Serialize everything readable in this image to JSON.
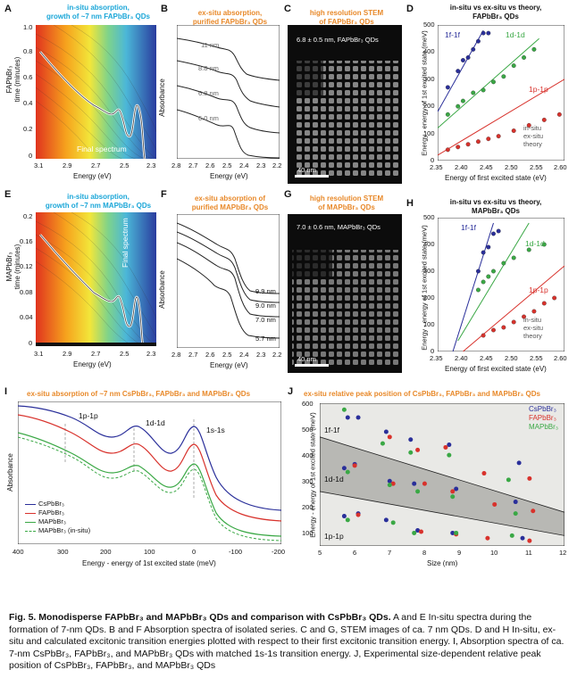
{
  "panels": {
    "A": {
      "label": "A",
      "title_line1": "in-situ absorption,",
      "title_line2": "growth of ~7 nm FAPbBr₃ QDs",
      "ylabel_line1": "FAPbBr₃",
      "ylabel_line2": "time (minutes)",
      "xlabel": "Energy (eV)",
      "xticks": [
        "3.1",
        "2.9",
        "2.7",
        "2.5",
        "2.3"
      ],
      "yticks": [
        "1.0",
        "0.8",
        "0.6",
        "0.4",
        "0.2",
        "0"
      ],
      "annotation": "Final spectrum"
    },
    "B": {
      "label": "B",
      "title_line1": "ex-situ absorption,",
      "title_line2": "purified FAPbBr₃ QDs",
      "ylabel": "Absorbance",
      "xlabel": "Energy (eV)",
      "xticks": [
        "2.8",
        "2.7",
        "2.6",
        "2.5",
        "2.4",
        "2.3",
        "2.2"
      ],
      "sizes": [
        "11 nm",
        "8.8 nm",
        "6.8 nm",
        "6.0 nm"
      ]
    },
    "C": {
      "label": "C",
      "title_line1": "high resolution STEM",
      "title_line2": "of FAPbBr₃ QDs",
      "size_note": "6.8 ± 0.5 nm, FAPbBr₃ QDs",
      "scalebar": "40 nm"
    },
    "D": {
      "label": "D",
      "title_line1": "in-situ vs ex-situ vs theory,",
      "title_line2": "FAPbBr₃ QDs",
      "ylabel": "Energy - energy of 1st excited state (meV)",
      "xlabel": "Energy of first excited state (eV)",
      "xticks": [
        "2.35",
        "2.40",
        "2.45",
        "2.50",
        "2.55",
        "2.60"
      ],
      "yticks": [
        "0",
        "100",
        "200",
        "300",
        "400",
        "500"
      ],
      "labels": [
        "1f-1f",
        "1d-1d",
        "1p-1p"
      ],
      "legend": [
        "in-situ",
        "ex-situ",
        "theory"
      ]
    },
    "E": {
      "label": "E",
      "title_line1": "in-situ absorption,",
      "title_line2": "growth of ~7 nm MAPbBr₃ QDs",
      "ylabel_line1": "MAPbBr₃",
      "ylabel_line2": "time (minutes)",
      "xlabel": "Energy (eV)",
      "xticks": [
        "3.1",
        "2.9",
        "2.7",
        "2.5",
        "2.3"
      ],
      "yticks": [
        "0.2",
        "0.16",
        "0.12",
        "0.08",
        "0.04",
        "0"
      ],
      "annotation": "Final spectrum"
    },
    "F": {
      "label": "F",
      "title_line1": "ex-situ absorption of",
      "title_line2": "purified MAPbBr₃ QDs",
      "ylabel": "Absorbance",
      "xlabel": "Energy (eV)",
      "xticks": [
        "2.8",
        "2.7",
        "2.6",
        "2.5",
        "2.4",
        "2.3",
        "2.2"
      ],
      "sizes": [
        "9.9 nm",
        "9.0 nm",
        "7.0 nm",
        "5.7 nm"
      ]
    },
    "G": {
      "label": "G",
      "title_line1": "high resolution STEM",
      "title_line2": "of MAPbBr₃ QDs",
      "size_note": "7.0 ± 0.6 nm, MAPbBr₃ QDs",
      "scalebar": "40 nm"
    },
    "H": {
      "label": "H",
      "title_line1": "in-situ vs ex-situ vs theory,",
      "title_line2": "MAPbBr₃ QDs",
      "ylabel": "Energy - energy of 1st excited state (meV)",
      "xlabel": "Energy of first excited state (eV)",
      "xticks": [
        "2.35",
        "2.40",
        "2.45",
        "2.50",
        "2.55",
        "2.60"
      ],
      "yticks": [
        "0",
        "100",
        "200",
        "300",
        "400",
        "500"
      ],
      "labels": [
        "1f-1f",
        "1d-1d",
        "1p-1p"
      ],
      "legend": [
        "in-situ",
        "ex-situ",
        "theory"
      ]
    },
    "I": {
      "label": "I",
      "title": "ex-situ absorption of ~7 nm CsPbBr₃, FAPbBr₃ and MAPbBr₃ QDs",
      "ylabel": "Absorbance",
      "xlabel": "Energy - energy of 1st excited state (meV)",
      "xticks": [
        "400",
        "300",
        "200",
        "100",
        "0",
        "-100",
        "-200"
      ],
      "peaks": [
        "1p-1p",
        "1d-1d",
        "1s-1s"
      ],
      "legend": [
        "CsPbBr₃",
        "FAPbBr₃",
        "MAPbBr₃",
        "MAPbBr₃ (in-situ)"
      ]
    },
    "J": {
      "label": "J",
      "title": "ex-situ relative peak position of CsPbBr₃, FAPbBr₃ and MAPbBr₃ QDs",
      "ylabel": "Energy - energy of 1st excited state (meV)",
      "xlabel": "Size (nm)",
      "xticks": [
        "5",
        "6",
        "7",
        "8",
        "9",
        "10",
        "11",
        "12"
      ],
      "yticks": [
        "100",
        "200",
        "300",
        "400",
        "500",
        "600"
      ],
      "bands": [
        "1f-1f",
        "1d-1d",
        "1p-1p"
      ],
      "legend": [
        "CsPbBr₃",
        "FAPbBr₃",
        "MAPbBr₃"
      ]
    }
  },
  "colors": {
    "cyan": "#1aa6d8",
    "orange": "#e8892a",
    "blue": "#2a2f9a",
    "red": "#d8322c",
    "green": "#3aa845"
  },
  "chart_data": [
    {
      "panel": "D",
      "type": "scatter",
      "xlim": [
        2.35,
        2.6
      ],
      "ylim": [
        0,
        500
      ],
      "series": [
        {
          "name": "1f-1f ex-situ",
          "color": "blue",
          "x": [
            2.37,
            2.39,
            2.4,
            2.41,
            2.42,
            2.43,
            2.44,
            2.45
          ],
          "y": [
            270,
            330,
            370,
            380,
            410,
            440,
            470,
            470
          ]
        },
        {
          "name": "1d-1d ex-situ",
          "color": "green",
          "x": [
            2.37,
            2.39,
            2.4,
            2.42,
            2.44,
            2.46,
            2.48,
            2.5,
            2.52,
            2.54
          ],
          "y": [
            170,
            200,
            220,
            250,
            260,
            290,
            310,
            350,
            380,
            410
          ]
        },
        {
          "name": "1p-1p ex-situ",
          "color": "red",
          "x": [
            2.37,
            2.39,
            2.41,
            2.43,
            2.45,
            2.47,
            2.5,
            2.53,
            2.56,
            2.59
          ],
          "y": [
            40,
            50,
            60,
            70,
            80,
            90,
            110,
            130,
            150,
            170
          ]
        }
      ],
      "theory": [
        {
          "color": "blue",
          "x": [
            2.35,
            2.44
          ],
          "y": [
            180,
            480
          ]
        },
        {
          "color": "green",
          "x": [
            2.35,
            2.55
          ],
          "y": [
            120,
            450
          ]
        },
        {
          "color": "red",
          "x": [
            2.35,
            2.6
          ],
          "y": [
            20,
            300
          ]
        }
      ]
    },
    {
      "panel": "H",
      "type": "scatter",
      "xlim": [
        2.35,
        2.6
      ],
      "ylim": [
        0,
        500
      ],
      "series": [
        {
          "name": "1f-1f ex-situ",
          "color": "blue",
          "x": [
            2.43,
            2.44,
            2.45,
            2.46,
            2.47
          ],
          "y": [
            300,
            370,
            390,
            440,
            450
          ]
        },
        {
          "name": "1d-1d ex-situ",
          "color": "green",
          "x": [
            2.43,
            2.44,
            2.45,
            2.46,
            2.48,
            2.5,
            2.53,
            2.56
          ],
          "y": [
            230,
            260,
            280,
            300,
            330,
            350,
            380,
            400
          ]
        },
        {
          "name": "1p-1p ex-situ",
          "color": "red",
          "x": [
            2.44,
            2.46,
            2.48,
            2.5,
            2.52,
            2.54,
            2.56,
            2.58
          ],
          "y": [
            60,
            80,
            90,
            110,
            130,
            150,
            180,
            200
          ]
        }
      ],
      "theory": [
        {
          "color": "blue",
          "x": [
            2.38,
            2.46
          ],
          "y": [
            0,
            480
          ]
        },
        {
          "color": "green",
          "x": [
            2.39,
            2.53
          ],
          "y": [
            40,
            480
          ]
        },
        {
          "color": "red",
          "x": [
            2.4,
            2.6
          ],
          "y": [
            0,
            320
          ]
        }
      ]
    },
    {
      "panel": "J",
      "type": "scatter",
      "xlim": [
        5,
        12
      ],
      "ylim": [
        50,
        600
      ],
      "series": [
        {
          "name": "CsPbBr₃",
          "color": "blue",
          "x": [
            5.8,
            6.1,
            5.7,
            6.0,
            5.7,
            6.1,
            6.9,
            7.0,
            6.9,
            7.6,
            7.7,
            7.8,
            8.7,
            8.9,
            8.8,
            10.7,
            10.6,
            10.8
          ],
          "y": [
            545,
            545,
            350,
            365,
            165,
            175,
            490,
            300,
            150,
            460,
            290,
            110,
            440,
            270,
            100,
            370,
            220,
            80
          ]
        },
        {
          "name": "FAPbBr₃",
          "color": "red",
          "x": [
            6.0,
            6.1,
            7.0,
            7.1,
            7.8,
            8.0,
            7.9,
            8.6,
            8.8,
            8.9,
            9.7,
            10.0,
            9.8,
            11.0,
            11.1,
            11.0
          ],
          "y": [
            360,
            170,
            470,
            290,
            420,
            290,
            105,
            430,
            260,
            95,
            330,
            210,
            80,
            310,
            185,
            70
          ],
          "show": 1
        },
        {
          "name": "MAPbBr₃",
          "color": "green",
          "x": [
            5.7,
            5.8,
            5.8,
            6.8,
            7.0,
            7.1,
            7.6,
            7.8,
            7.7,
            8.7,
            8.8,
            8.9,
            10.4,
            10.6,
            10.5
          ],
          "y": [
            575,
            335,
            150,
            445,
            285,
            140,
            410,
            260,
            100,
            400,
            240,
            100,
            305,
            175,
            90
          ]
        }
      ]
    }
  ],
  "caption": {
    "lead": "Fig. 5. Monodisperse FAPbBr₃ and MAPbBr₃ QDs and comparison with CsPbBr₃ QDs.",
    "body": " A and E In-situ spectra during the formation of 7-nm QDs. B and F Absorption spectra of isolated series. C and G, STEM images of ca. 7 nm QDs. D and H In-situ, ex-situ and calculated excitonic transition energies plotted with respect to their first excitonic transition energy. I, Absorption spectra of ca. 7-nm CsPbBr₃, FAPbBr₃, and MAPbBr₃ QDs with matched 1s-1s transition energy. J, Experimental size-dependent relative peak position of CsPbBr₃, FAPbBr₃, and MAPbBr₃ QDs"
  }
}
